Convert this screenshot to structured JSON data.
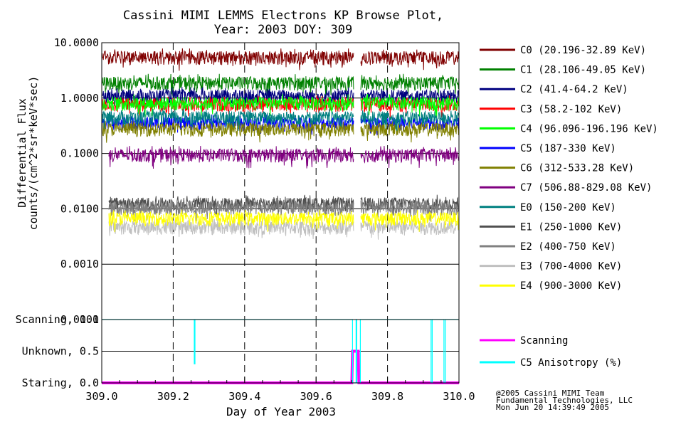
{
  "chart_data": [
    {
      "type": "line",
      "title": "Cassini MIMI LEMMS Electrons KP Browse Plot,",
      "subtitle": "Year: 2003 DOY: 309",
      "ylabel_line1": "Differential Flux",
      "ylabel_line2": "counts/(cm^2*sr*keV*sec)",
      "yscale": "log",
      "ylim": [
        0.0001,
        10.0
      ],
      "yticks": [
        "10.0000",
        "1.0000",
        "0.1000",
        "0.0100",
        "0.0010",
        "0.0001"
      ],
      "xlim": [
        309.0,
        310.0
      ],
      "data_gap": [
        309.705,
        309.725
      ],
      "series": [
        {
          "name": "C0 (20.196-32.89 KeV)",
          "color": "#800000",
          "level": 5.5,
          "start": 309.0
        },
        {
          "name": "C1 (28.106-49.05 KeV)",
          "color": "#008000",
          "level": 1.9,
          "start": 309.0
        },
        {
          "name": "C2 (41.4-64.2 KeV)",
          "color": "#000080",
          "level": 1.1,
          "start": 309.0
        },
        {
          "name": "C3 (58.2-102 KeV)",
          "color": "#ff0000",
          "level": 0.78,
          "start": 309.0
        },
        {
          "name": "C4 (96.096-196.196 KeV)",
          "color": "#00ff00",
          "level": 0.82,
          "start": 309.0
        },
        {
          "name": "C5 (187-330 KeV)",
          "color": "#0000ff",
          "level": 0.36,
          "start": 309.0
        },
        {
          "name": "C6 (312-533.28 KeV)",
          "color": "#808000",
          "level": 0.28,
          "start": 309.0
        },
        {
          "name": "C7 (506.88-829.08 KeV)",
          "color": "#800080",
          "level": 0.095,
          "start": 309.02
        },
        {
          "name": "E0 (150-200 KeV)",
          "color": "#008080",
          "level": 0.45,
          "start": 309.0
        },
        {
          "name": "E1 (250-1000 KeV)",
          "color": "#505050",
          "level": 0.0125,
          "start": 309.02
        },
        {
          "name": "E2 (400-750 KeV)",
          "color": "#808080",
          "level": 0.0105,
          "start": 309.02
        },
        {
          "name": "E3 (700-4000 KeV)",
          "color": "#c0c0c0",
          "level": 0.0047,
          "start": 309.02
        },
        {
          "name": "E4 (900-3000 KeV)",
          "color": "#ffff00",
          "level": 0.0068,
          "start": 309.02
        }
      ]
    },
    {
      "type": "line",
      "xlabel": "Day of Year 2003",
      "xlim": [
        309.0,
        310.0
      ],
      "xticks": [
        "309.0",
        "309.2",
        "309.4",
        "309.6",
        "309.8",
        "310.0"
      ],
      "ylim": [
        0.0,
        1.0
      ],
      "yticks": [
        "Scanning, 1.0",
        "Unknown, 0.5",
        "Staring, 0.0"
      ],
      "series": [
        {
          "name": "Scanning",
          "color": "#ff00ff",
          "x": [
            309.0,
            309.7,
            309.702,
            309.718,
            309.72,
            310.0
          ],
          "y": [
            0.0,
            0.0,
            0.5,
            0.5,
            0.0,
            0.0
          ]
        },
        {
          "name": "C5 Anisotropy (%)",
          "color": "#00ffff",
          "x": [
            309.0,
            309.259,
            309.259,
            309.261,
            309.261,
            309.702,
            309.702,
            309.712,
            309.712,
            309.714,
            309.714,
            309.724,
            309.724,
            309.922,
            309.922,
            309.925,
            309.925,
            309.958,
            309.958,
            309.962,
            309.962,
            310.0
          ],
          "y": [
            1.0,
            1.0,
            0.3,
            0.3,
            1.0,
            1.0,
            0.0,
            0.0,
            1.0,
            1.0,
            0.0,
            0.0,
            1.0,
            1.0,
            0.0,
            0.0,
            1.0,
            1.0,
            0.0,
            0.0,
            1.0,
            1.0
          ]
        }
      ]
    }
  ],
  "credits": {
    "line1": "@2005 Cassini MIMI Team",
    "line2": "Fundamental Technologies, LLC",
    "line3": "Mon Jun 20 14:39:49 2005"
  }
}
